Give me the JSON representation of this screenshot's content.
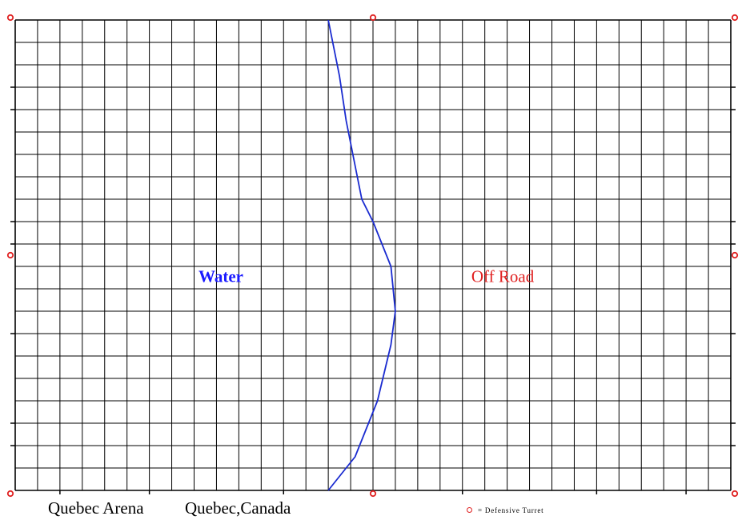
{
  "map": {
    "grid": {
      "columns": 32,
      "rows": 21
    },
    "regions": [
      {
        "name": "Water",
        "color": "#1a1aff",
        "bold": true
      },
      {
        "name": "Off Road",
        "color": "#e02020",
        "bold": false
      }
    ],
    "boundary_color": "#1a2bd0",
    "boundary_path": [
      [
        14.0,
        0.0
      ],
      [
        14.5,
        2.5
      ],
      [
        14.8,
        4.5
      ],
      [
        15.3,
        7.0
      ],
      [
        15.5,
        8.0
      ],
      [
        16.0,
        9.0
      ],
      [
        16.8,
        11.0
      ],
      [
        17.0,
        13.0
      ],
      [
        16.8,
        14.5
      ],
      [
        16.2,
        17.0
      ],
      [
        15.8,
        18.0
      ],
      [
        15.2,
        19.5
      ],
      [
        14.0,
        21.0
      ]
    ],
    "turret_color": "#e02020",
    "turrets": [
      {
        "col": 0,
        "row": 0
      },
      {
        "col": 16,
        "row": 0
      },
      {
        "col": 32,
        "row": 0
      },
      {
        "col": 0,
        "row": 10.5
      },
      {
        "col": 32,
        "row": 10.5
      },
      {
        "col": 0,
        "row": 21
      },
      {
        "col": 16,
        "row": 21
      },
      {
        "col": 32,
        "row": 21
      }
    ]
  },
  "caption": {
    "name": "Quebec Arena",
    "location": "Quebec,Canada"
  },
  "legend": {
    "text": "= Defensive Turret"
  }
}
